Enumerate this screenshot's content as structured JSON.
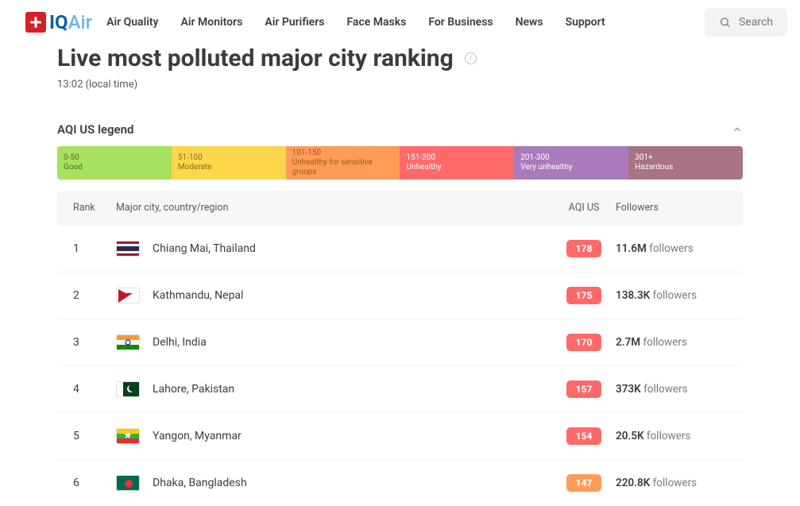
{
  "nav": {
    "items": [
      "Air Quality",
      "Air Monitors",
      "Air Purifiers",
      "Face Masks",
      "For Business",
      "News",
      "Support"
    ],
    "search_placeholder": "Search"
  },
  "logo": {
    "iq": "IQ",
    "air": "Air"
  },
  "page": {
    "title": "Live most polluted major city ranking",
    "timestamp": "13:02 (local time)"
  },
  "legend": {
    "title": "AQI US legend",
    "segments": [
      {
        "range": "0-50",
        "label": "Good",
        "bg": "#a8e05f",
        "cls": "dark"
      },
      {
        "range": "51-100",
        "label": "Moderate",
        "bg": "#fdd74b",
        "cls": "md"
      },
      {
        "range": "101-150",
        "label": "Unhealthy for sensitive groups",
        "bg": "#fe9b57",
        "cls": "or"
      },
      {
        "range": "151-200",
        "label": "Unhealthy",
        "bg": "#fe6a69",
        "cls": ""
      },
      {
        "range": "201-300",
        "label": "Very unhealthy",
        "bg": "#a97abc",
        "cls": ""
      },
      {
        "range": "301+",
        "label": "Hazardous",
        "bg": "#a87383",
        "cls": ""
      }
    ]
  },
  "table": {
    "columns": {
      "rank": "Rank",
      "city": "Major city, country/region",
      "aqi": "AQI US",
      "followers": "Followers"
    },
    "followers_word": "followers",
    "rows": [
      {
        "rank": 1,
        "city": "Chiang Mai, Thailand",
        "flag": "th",
        "aqi": 178,
        "aqi_color": "#fe6a69",
        "followers": "11.6M"
      },
      {
        "rank": 2,
        "city": "Kathmandu, Nepal",
        "flag": "np",
        "aqi": 175,
        "aqi_color": "#fe6a69",
        "followers": "138.3K"
      },
      {
        "rank": 3,
        "city": "Delhi, India",
        "flag": "in",
        "aqi": 170,
        "aqi_color": "#fe6a69",
        "followers": "2.7M"
      },
      {
        "rank": 4,
        "city": "Lahore, Pakistan",
        "flag": "pk",
        "aqi": 157,
        "aqi_color": "#fe6a69",
        "followers": "373K"
      },
      {
        "rank": 5,
        "city": "Yangon, Myanmar",
        "flag": "mm",
        "aqi": 154,
        "aqi_color": "#fe6a69",
        "followers": "20.5K"
      },
      {
        "rank": 6,
        "city": "Dhaka, Bangladesh",
        "flag": "bd",
        "aqi": 147,
        "aqi_color": "#fe9b57",
        "followers": "220.8K"
      }
    ]
  }
}
